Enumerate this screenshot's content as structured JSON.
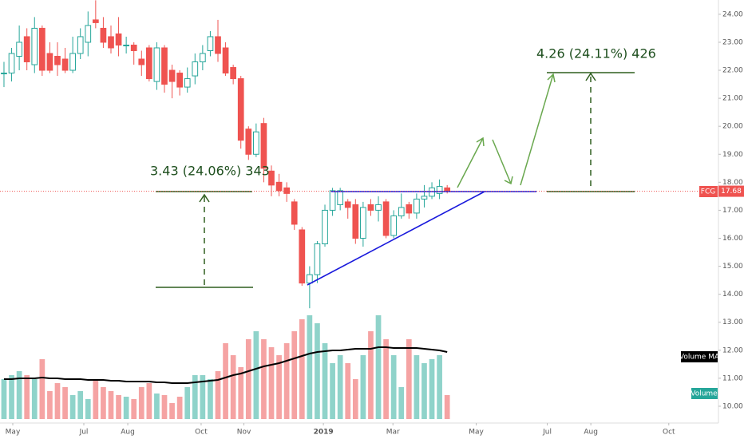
{
  "chart_data": {
    "type": "candlestick",
    "symbol": "FCG",
    "last_price": 17.68,
    "last_price_label": "17.68",
    "annotations": [
      "3.43 (24.06%) 343",
      "4.26 (24.11%) 426"
    ],
    "volume_label": "Volume",
    "volume_ma_label": "Volume MA",
    "up_color": "#26a69a",
    "down_color": "#ef5350",
    "volume_up_color": "#8fd3ca",
    "volume_down_color": "#f5a3a3",
    "ma_color": "#000000",
    "open": [
      21.9,
      21.9,
      22.5,
      23.2,
      22.2,
      23.5,
      22.6,
      22.5,
      22.4,
      22.0,
      22.6,
      23.0,
      23.8,
      23.5,
      23.2,
      23.3,
      22.9,
      22.9,
      22.4,
      22.8,
      21.6,
      22.8,
      22.0,
      21.9,
      21.4,
      21.8,
      22.3,
      22.7,
      23.2,
      22.8,
      22.1,
      21.7,
      19.9,
      19.0,
      20.1,
      18.4,
      18.0,
      17.8,
      17.3,
      16.3,
      14.4,
      14.7,
      15.8,
      17.0,
      17.2,
      17.3,
      17.2,
      16.0,
      17.2,
      17.0,
      17.3,
      16.1,
      16.8,
      17.2,
      16.9,
      17.4,
      17.5,
      17.6,
      17.8
    ],
    "high": [
      22.3,
      22.8,
      23.6,
      23.5,
      23.9,
      23.6,
      23.0,
      23.0,
      22.8,
      23.2,
      23.5,
      24.1,
      24.5,
      23.9,
      23.6,
      23.9,
      23.2,
      23.0,
      22.7,
      22.9,
      23.0,
      22.9,
      22.2,
      22.0,
      22.1,
      22.6,
      22.9,
      23.4,
      23.8,
      23.0,
      22.2,
      21.8,
      20.0,
      20.1,
      20.3,
      18.6,
      18.3,
      18.0,
      17.4,
      16.4,
      15.0,
      15.9,
      17.2,
      17.8,
      17.8,
      17.4,
      17.4,
      17.3,
      17.4,
      17.5,
      17.4,
      17.0,
      17.6,
      17.3,
      17.6,
      17.9,
      18.0,
      18.1,
      17.9
    ],
    "low": [
      21.4,
      21.6,
      22.0,
      22.0,
      21.9,
      21.8,
      21.9,
      21.8,
      21.9,
      21.9,
      22.4,
      22.5,
      23.5,
      22.8,
      22.6,
      22.5,
      22.6,
      22.2,
      21.8,
      21.6,
      21.3,
      21.2,
      21.0,
      21.1,
      21.2,
      21.5,
      22.0,
      22.5,
      22.3,
      21.8,
      21.5,
      19.2,
      18.8,
      18.9,
      18.0,
      17.5,
      17.5,
      17.3,
      16.3,
      14.3,
      13.5,
      14.4,
      15.7,
      16.8,
      17.0,
      16.7,
      15.8,
      15.7,
      16.8,
      16.6,
      16.0,
      16.0,
      16.7,
      16.7,
      16.7,
      17.1,
      17.4,
      17.4,
      17.6
    ],
    "close": [
      21.9,
      22.6,
      23.0,
      22.3,
      23.5,
      22.0,
      22.0,
      22.2,
      22.0,
      22.6,
      23.2,
      23.6,
      23.7,
      23.0,
      22.8,
      22.9,
      22.9,
      22.7,
      22.2,
      21.7,
      22.8,
      21.5,
      21.6,
      21.4,
      21.7,
      22.3,
      22.6,
      23.2,
      22.6,
      21.9,
      21.7,
      19.5,
      19.0,
      19.8,
      18.5,
      17.9,
      17.7,
      17.6,
      16.5,
      14.4,
      14.7,
      15.8,
      17.0,
      17.7,
      17.7,
      17.1,
      16.0,
      17.1,
      17.0,
      17.2,
      16.1,
      16.8,
      17.1,
      16.9,
      17.4,
      17.5,
      17.8,
      17.85,
      17.68
    ],
    "volume": [
      50,
      55,
      60,
      55,
      50,
      75,
      35,
      45,
      40,
      30,
      35,
      25,
      48,
      40,
      35,
      30,
      28,
      25,
      40,
      45,
      32,
      30,
      20,
      28,
      40,
      55,
      55,
      50,
      60,
      95,
      80,
      65,
      100,
      110,
      100,
      90,
      80,
      95,
      110,
      125,
      130,
      120,
      95,
      70,
      80,
      70,
      50,
      80,
      110,
      130,
      100,
      80,
      40,
      100,
      80,
      70,
      75,
      80,
      30
    ],
    "volume_ma": [
      50,
      50,
      51,
      51,
      51,
      52,
      51,
      51,
      50,
      50,
      50,
      49,
      49,
      49,
      48,
      48,
      47,
      47,
      47,
      47,
      46,
      46,
      45,
      45,
      45,
      46,
      47,
      48,
      49,
      52,
      55,
      57,
      60,
      63,
      66,
      68,
      70,
      73,
      76,
      79,
      82,
      84,
      85,
      86,
      86,
      87,
      88,
      88,
      88,
      90,
      90,
      89,
      89,
      89,
      89,
      88,
      87,
      86,
      84
    ],
    "xticks": [
      {
        "value": 1.15,
        "label": "May"
      },
      {
        "value": 10.45,
        "label": "Jul"
      },
      {
        "value": 16.2,
        "label": "Aug"
      },
      {
        "value": 25.8,
        "label": "Oct"
      },
      {
        "value": 31.4,
        "label": "Nov"
      },
      {
        "value": 41.8,
        "label": "2019"
      },
      {
        "value": 50.9,
        "label": "Mar"
      },
      {
        "value": 61.8,
        "label": "May"
      },
      {
        "value": 71.1,
        "label": "Jul"
      },
      {
        "value": 76.8,
        "label": "Aug"
      },
      {
        "value": 87.0,
        "label": "Oct"
      }
    ],
    "xlim": [
      -0.52,
      93.5
    ],
    "ylim": [
      9.4,
      24.51
    ],
    "volume_ylim": [
      0,
      130
    ],
    "yticks": [
      {
        "value": 10,
        "label": "10.00"
      },
      {
        "value": 11,
        "label": "11.00"
      },
      {
        "value": 12,
        "label": "12.00"
      },
      {
        "value": 13,
        "label": "13.00"
      },
      {
        "value": 14,
        "label": "14.00"
      },
      {
        "value": 15,
        "label": "15.00"
      },
      {
        "value": 16,
        "label": "16.00"
      },
      {
        "value": 17,
        "label": "17.00"
      },
      {
        "value": 18,
        "label": "18.00"
      },
      {
        "value": 19,
        "label": "19.00"
      },
      {
        "value": 20,
        "label": "20.00"
      },
      {
        "value": 21,
        "label": "21.00"
      },
      {
        "value": 22,
        "label": "22.00"
      },
      {
        "value": 23,
        "label": "23.00"
      },
      {
        "value": 24,
        "label": "24.00"
      }
    ],
    "grid": false
  }
}
